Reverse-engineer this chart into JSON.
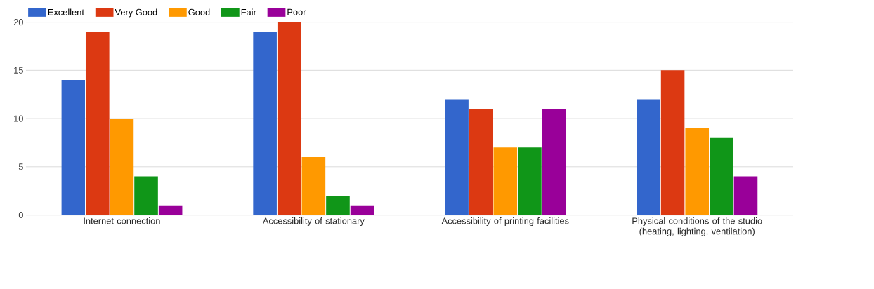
{
  "chart_data": {
    "type": "bar",
    "categories": [
      "Internet connection",
      "Accessibility of stationary",
      "Accessibility of printing facilities",
      "Physical conditions of the studio (heating, lighting, ventilation)"
    ],
    "series": [
      {
        "name": "Excellent",
        "color": "#3366cc",
        "values": [
          14,
          19,
          12,
          12
        ]
      },
      {
        "name": "Very Good",
        "color": "#dc3912",
        "values": [
          19,
          20,
          11,
          15
        ]
      },
      {
        "name": "Good",
        "color": "#ff9900",
        "values": [
          10,
          6,
          7,
          9
        ]
      },
      {
        "name": "Fair",
        "color": "#109618",
        "values": [
          4,
          2,
          7,
          8
        ]
      },
      {
        "name": "Poor",
        "color": "#990099",
        "values": [
          1,
          1,
          11,
          4
        ]
      }
    ],
    "ylim": [
      0,
      20
    ],
    "yticks": [
      0,
      5,
      10,
      15,
      20
    ],
    "grid": "y",
    "legend": "top left"
  }
}
